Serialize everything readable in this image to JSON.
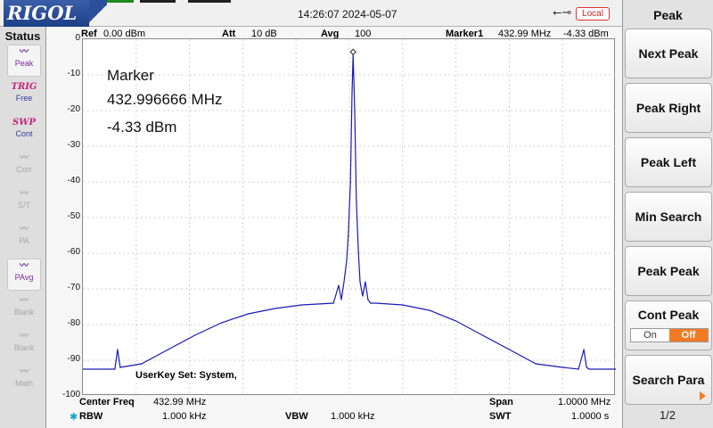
{
  "header": {
    "logo": "RIGOL",
    "datetime": "14:26:07 2024-05-07",
    "remote": "Local",
    "usb_icon": "usb-icon"
  },
  "status": {
    "title": "Status",
    "items": [
      {
        "icon": "peak",
        "label": "Peak",
        "top": ""
      },
      {
        "icon": "trig",
        "label": "Free",
        "top": "TRIG"
      },
      {
        "icon": "swp",
        "label": "Cont",
        "top": "SWP"
      },
      {
        "icon": "corr",
        "label": "Corr",
        "top": ""
      },
      {
        "icon": "st",
        "label": "S/T",
        "top": ""
      },
      {
        "icon": "pa",
        "label": "PA",
        "top": ""
      },
      {
        "icon": "pavg",
        "label": "PAvg",
        "top": ""
      },
      {
        "icon": "blank",
        "label": "Blank",
        "top": ""
      },
      {
        "icon": "blank",
        "label": "Blank",
        "top": ""
      },
      {
        "icon": "math",
        "label": "Math",
        "top": ""
      }
    ]
  },
  "params": {
    "ref_label": "Ref",
    "ref_value": "0.00 dBm",
    "att_label": "Att",
    "att_value": "10 dB",
    "avg_label": "Avg",
    "avg_value": "100",
    "marker_label": "Marker1",
    "marker_freq": "432.99 MHz",
    "marker_level": "-4.33 dBm"
  },
  "marker_box": {
    "title": "Marker",
    "freq": "432.996666 MHz",
    "level": "-4.33 dBm"
  },
  "userkey": "UserKey Set:   System,",
  "footer": {
    "center_label": "Center Freq",
    "center_value": "432.99 MHz",
    "span_label": "Span",
    "span_value": "1.0000 MHz",
    "rbw_label": "RBW",
    "rbw_value": "1.000 kHz",
    "vbw_label": "VBW",
    "vbw_value": "1.000 kHz",
    "swt_label": "SWT",
    "swt_value": "1.0000 s"
  },
  "softkeys": {
    "title": "Peak",
    "buttons": [
      "Next Peak",
      "Peak Right",
      "Peak Left",
      "Min Search",
      "Peak Peak",
      "Cont Peak",
      "Search Para"
    ],
    "cont_on": "On",
    "cont_off": "Off",
    "page": "1/2"
  },
  "colors": {
    "trace": "#1a1ab8",
    "accent": "#f07b22",
    "logo": "#2c4f99"
  },
  "chart_data": {
    "type": "line",
    "xlabel": "",
    "ylabel": "",
    "ylim": [
      -100,
      0
    ],
    "yticks": [
      "0",
      "-10",
      "-20",
      "-30",
      "-40",
      "-50",
      "-60",
      "-70",
      "-80",
      "-90",
      "-100"
    ],
    "xlim_mhz": [
      432.49,
      433.49
    ],
    "grid": true,
    "series": [
      {
        "name": "",
        "x": [
          432.49,
          432.54,
          432.55,
          432.555,
          432.56,
          432.6,
          432.65,
          432.7,
          432.75,
          432.8,
          432.85,
          432.9,
          432.96,
          432.97,
          432.975,
          432.98,
          432.985,
          432.988,
          432.992,
          432.995,
          432.997,
          433.0,
          433.003,
          433.007,
          433.01,
          433.015,
          433.02,
          433.025,
          433.03,
          433.04,
          433.09,
          433.14,
          433.19,
          433.24,
          433.29,
          433.34,
          433.39,
          433.42,
          433.43,
          433.435,
          433.44,
          433.49
        ],
        "y": [
          -92.5,
          -92.5,
          -92.5,
          -87,
          -92,
          -91,
          -87,
          -83,
          -79.5,
          -77,
          -75.5,
          -74.5,
          -74,
          -69,
          -73,
          -68,
          -62,
          -55,
          -40,
          -15,
          -4.3,
          -20,
          -45,
          -60,
          -68,
          -72,
          -68,
          -73,
          -74,
          -74,
          -74.5,
          -76,
          -79,
          -83,
          -87,
          -91,
          -92,
          -92.5,
          -87,
          -92,
          -92.5,
          -92.5
        ]
      }
    ]
  }
}
